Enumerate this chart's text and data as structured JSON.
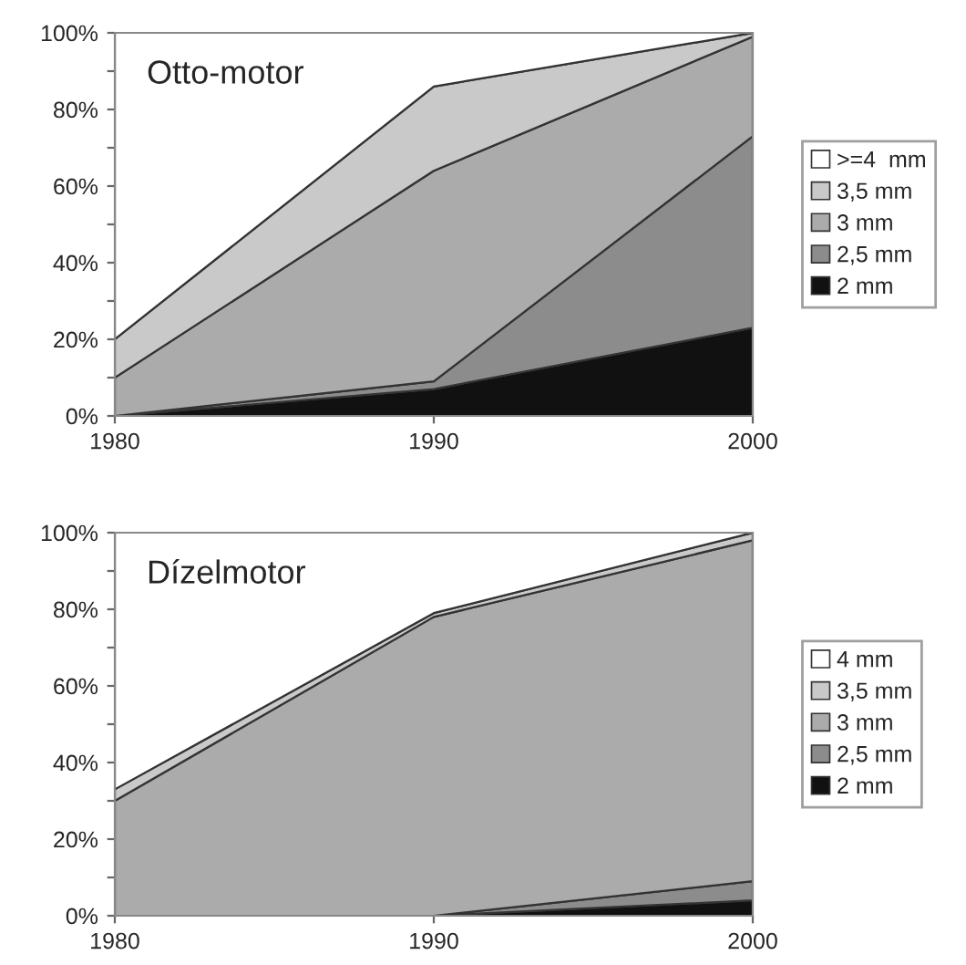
{
  "chart_data": [
    {
      "type": "area",
      "stacked": true,
      "title": "Otto-motor",
      "x": [
        1980,
        1990,
        2000
      ],
      "xlim": [
        1980,
        2000
      ],
      "xticks": [
        1980,
        1990,
        2000
      ],
      "ylim": [
        0,
        100
      ],
      "yticks": [
        {
          "value": 0,
          "label": "0%"
        },
        {
          "value": 10,
          "label": null
        },
        {
          "value": 20,
          "label": "20%"
        },
        {
          "value": 30,
          "label": null
        },
        {
          "value": 40,
          "label": "40%"
        },
        {
          "value": 50,
          "label": null
        },
        {
          "value": 60,
          "label": "60%"
        },
        {
          "value": 70,
          "label": null
        },
        {
          "value": 80,
          "label": "80%"
        },
        {
          "value": 90,
          "label": null
        },
        {
          "value": 100,
          "label": "100%"
        }
      ],
      "legend": "right",
      "series": [
        {
          "name": "2 mm",
          "color": "#111111",
          "values": [
            0,
            7,
            23
          ]
        },
        {
          "name": "2,5 mm",
          "color": "#8c8c8c",
          "values": [
            0,
            2,
            50
          ]
        },
        {
          "name": "3 mm",
          "color": "#ababab",
          "values": [
            10,
            55,
            26
          ]
        },
        {
          "name": "3,5 mm",
          "color": "#c9c9c9",
          "values": [
            10,
            22,
            1
          ]
        },
        {
          "name": ">=4  mm",
          "color": "#ffffff",
          "values": [
            80,
            14,
            0
          ]
        }
      ]
    },
    {
      "type": "area",
      "stacked": true,
      "title": "Dízelmotor",
      "x": [
        1980,
        1990,
        2000
      ],
      "xlim": [
        1980,
        2000
      ],
      "xticks": [
        1980,
        1990,
        2000
      ],
      "ylim": [
        0,
        100
      ],
      "yticks": [
        {
          "value": 0,
          "label": "0%"
        },
        {
          "value": 10,
          "label": null
        },
        {
          "value": 20,
          "label": "20%"
        },
        {
          "value": 30,
          "label": null
        },
        {
          "value": 40,
          "label": "40%"
        },
        {
          "value": 50,
          "label": null
        },
        {
          "value": 60,
          "label": "60%"
        },
        {
          "value": 70,
          "label": null
        },
        {
          "value": 80,
          "label": "80%"
        },
        {
          "value": 90,
          "label": null
        },
        {
          "value": 100,
          "label": "100%"
        }
      ],
      "legend": "right",
      "series": [
        {
          "name": "2 mm",
          "color": "#111111",
          "values": [
            0,
            0,
            4
          ]
        },
        {
          "name": "2,5 mm",
          "color": "#8c8c8c",
          "values": [
            0,
            0,
            5
          ]
        },
        {
          "name": "3 mm",
          "color": "#ababab",
          "values": [
            30,
            78,
            89
          ]
        },
        {
          "name": "3,5 mm",
          "color": "#c9c9c9",
          "values": [
            3,
            1,
            2
          ]
        },
        {
          "name": "4 mm",
          "color": "#ffffff",
          "values": [
            67,
            21,
            0
          ]
        }
      ]
    }
  ]
}
